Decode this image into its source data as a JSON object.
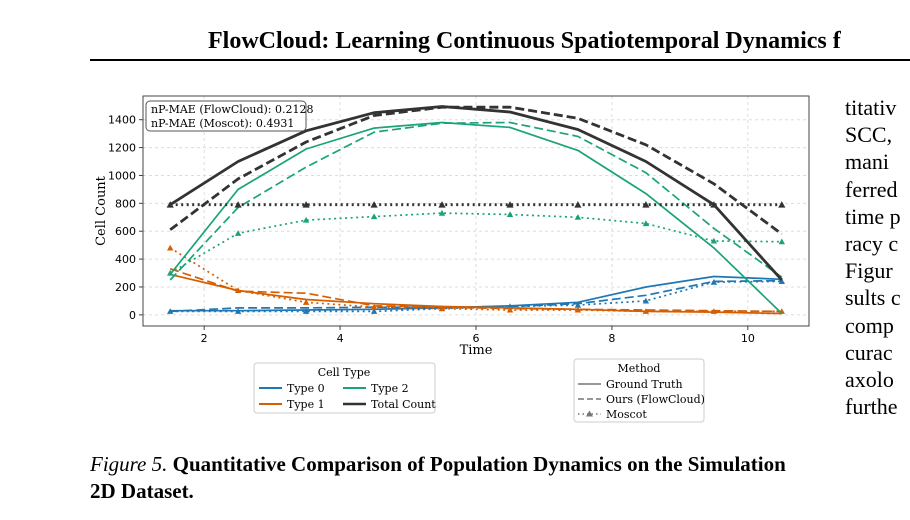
{
  "page": {
    "header_title": "FlowCloud: Learning Continuous Spatiotemporal Dynamics f",
    "caption_prefix": "Figure 5.",
    "caption_title": "Quantitative Comparison of Population Dynamics on the Simulation 2D Dataset.",
    "side_column_lines": [
      "titativ",
      "SCC,",
      "mani",
      "ferred",
      "time p",
      "racy c",
      "Figur",
      "sults c",
      "comp",
      "curac",
      "axolo",
      "furthe"
    ]
  },
  "chart_data": {
    "type": "line",
    "xlabel": "Time",
    "ylabel": "Cell Count",
    "xlim": [
      1.1,
      10.9
    ],
    "ylim": [
      -80,
      1570
    ],
    "xticks": [
      2,
      4,
      6,
      8,
      10
    ],
    "yticks": [
      0,
      200,
      400,
      600,
      800,
      1000,
      1200,
      1400
    ],
    "grid": true,
    "x": [
      1.5,
      2.5,
      3.5,
      4.5,
      5.5,
      6.5,
      7.5,
      8.5,
      9.5,
      10.5
    ],
    "annotation": [
      "nP-MAE (FlowCloud): 0.2128",
      "nP-MAE (Moscot): 0.4931"
    ],
    "annotation_position": "top-left",
    "colors": {
      "Type 0": "#1f77b4",
      "Type 1": "#d55e00",
      "Type 2": "#1aa37a",
      "Total Count": "#333333"
    },
    "series": [
      {
        "name": "Type 0",
        "method": "Ground Truth",
        "values": [
          30,
          30,
          35,
          40,
          50,
          65,
          90,
          200,
          275,
          255
        ]
      },
      {
        "name": "Type 0",
        "method": "Ours (FlowCloud)",
        "values": [
          25,
          50,
          50,
          55,
          55,
          60,
          80,
          140,
          240,
          245
        ]
      },
      {
        "name": "Type 0",
        "method": "Moscot",
        "values": [
          25,
          25,
          25,
          25,
          45,
          60,
          70,
          100,
          235,
          240
        ]
      },
      {
        "name": "Type 1",
        "method": "Ground Truth",
        "values": [
          290,
          175,
          110,
          80,
          60,
          50,
          40,
          25,
          20,
          10
        ]
      },
      {
        "name": "Type 1",
        "method": "Ours (FlowCloud)",
        "values": [
          330,
          170,
          155,
          65,
          55,
          45,
          40,
          35,
          30,
          25
        ]
      },
      {
        "name": "Type 1",
        "method": "Moscot",
        "values": [
          480,
          175,
          90,
          55,
          45,
          35,
          35,
          25,
          25,
          25
        ]
      },
      {
        "name": "Type 2",
        "method": "Ground Truth",
        "values": [
          290,
          900,
          1190,
          1340,
          1380,
          1345,
          1180,
          870,
          480,
          10
        ]
      },
      {
        "name": "Type 2",
        "method": "Ours (FlowCloud)",
        "values": [
          250,
          770,
          1060,
          1310,
          1375,
          1380,
          1280,
          1020,
          620,
          270
        ]
      },
      {
        "name": "Type 2",
        "method": "Moscot",
        "values": [
          300,
          585,
          680,
          705,
          730,
          720,
          700,
          655,
          530,
          525
        ]
      },
      {
        "name": "Total Count",
        "method": "Ground Truth",
        "values": [
          790,
          1100,
          1320,
          1450,
          1495,
          1455,
          1330,
          1100,
          790,
          250
        ]
      },
      {
        "name": "Total Count",
        "method": "Ours (FlowCloud)",
        "values": [
          610,
          975,
          1240,
          1430,
          1490,
          1490,
          1410,
          1220,
          940,
          580
        ]
      },
      {
        "name": "Total Count",
        "method": "Moscot",
        "values": [
          790,
          790,
          790,
          790,
          790,
          790,
          790,
          790,
          790,
          790
        ]
      }
    ],
    "legend_cell_type": {
      "title": "Cell Type",
      "entries": [
        "Type 0",
        "Type 2",
        "Type 1",
        "Total Count"
      ]
    },
    "legend_method": {
      "title": "Method",
      "entries": [
        "Ground Truth",
        "Ours (FlowCloud)",
        "Moscot"
      ]
    }
  }
}
